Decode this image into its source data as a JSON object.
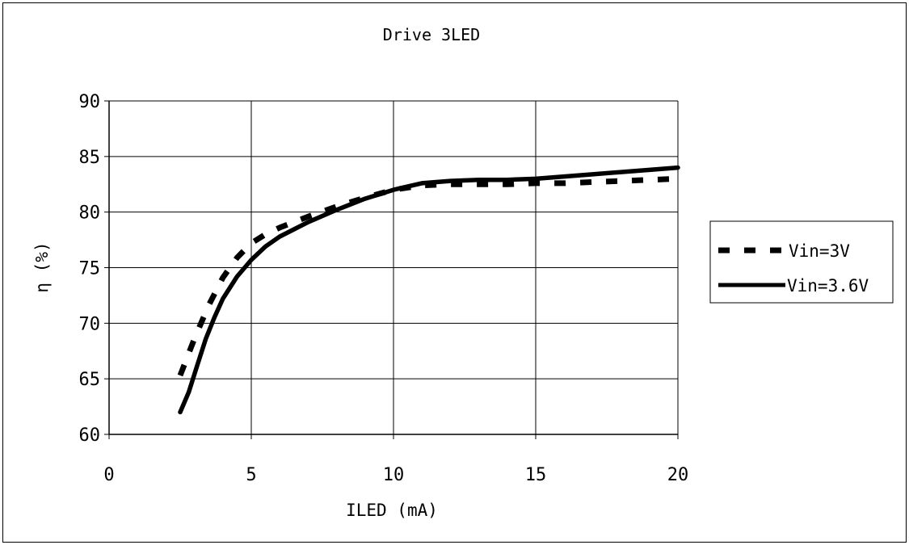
{
  "chart_data": {
    "type": "line",
    "title": "Drive 3LED",
    "xlabel": "ILED (mA)",
    "ylabel": "η (%)",
    "xlim": [
      0,
      20
    ],
    "ylim": [
      60,
      90
    ],
    "x_ticks": [
      0,
      5,
      10,
      15,
      20
    ],
    "y_ticks": [
      60,
      65,
      70,
      75,
      80,
      85,
      90
    ],
    "grid": true,
    "legend_position": "right",
    "series": [
      {
        "name": "Vin=3V",
        "style": "dashed",
        "color": "#000000",
        "x": [
          2.5,
          3.0,
          3.5,
          4.0,
          4.5,
          5.0,
          5.5,
          6.0,
          7.0,
          8.0,
          9.0,
          10.0,
          11.0,
          12.0,
          13.0,
          14.0,
          15.0,
          16.0,
          17.0,
          18.0,
          19.0,
          20.0
        ],
        "y": [
          65.3,
          68.6,
          71.6,
          74.1,
          75.9,
          77.2,
          78.0,
          78.6,
          79.6,
          80.5,
          81.3,
          82.0,
          82.4,
          82.5,
          82.5,
          82.5,
          82.6,
          82.6,
          82.7,
          82.8,
          82.9,
          83.0
        ]
      },
      {
        "name": "Vin=3.6V",
        "style": "solid",
        "color": "#000000",
        "x": [
          2.5,
          2.8,
          3.1,
          3.4,
          3.7,
          4.0,
          4.5,
          5.0,
          5.5,
          6.0,
          7.0,
          8.0,
          9.0,
          10.0,
          11.0,
          12.0,
          13.0,
          14.0,
          15.0,
          16.0,
          17.0,
          18.0,
          19.0,
          20.0
        ],
        "y": [
          62.0,
          63.8,
          66.2,
          68.6,
          70.5,
          72.2,
          74.2,
          75.7,
          76.9,
          77.8,
          79.1,
          80.2,
          81.2,
          82.0,
          82.6,
          82.8,
          82.9,
          82.9,
          83.0,
          83.2,
          83.4,
          83.6,
          83.8,
          84.0
        ]
      }
    ]
  }
}
